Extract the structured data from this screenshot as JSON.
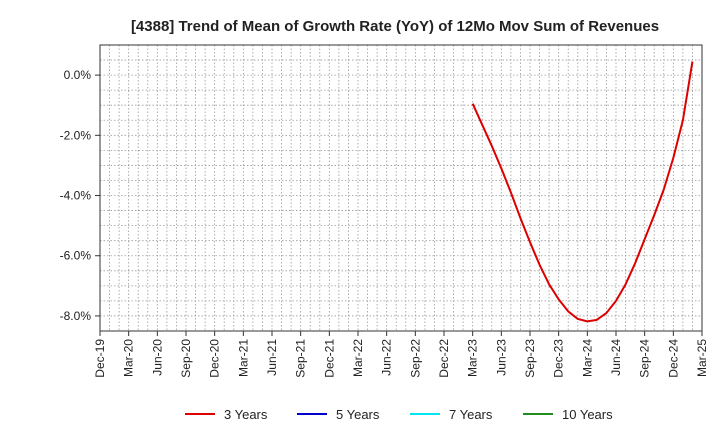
{
  "chart_data": {
    "type": "line",
    "title": "[4388]  Trend of Mean of Growth Rate (YoY) of 12Mo Mov Sum of Revenues",
    "xlabel": "",
    "ylabel": "",
    "x_tick_labels": [
      "Dec-19",
      "Mar-20",
      "Jun-20",
      "Sep-20",
      "Dec-20",
      "Mar-21",
      "Jun-21",
      "Sep-21",
      "Dec-21",
      "Mar-22",
      "Jun-22",
      "Sep-22",
      "Dec-22",
      "Mar-23",
      "Jun-23",
      "Sep-23",
      "Dec-23",
      "Mar-24",
      "Jun-24",
      "Sep-24",
      "Dec-24",
      "Mar-25"
    ],
    "y_ticks": [
      0.0,
      -2.0,
      -4.0,
      -6.0,
      -8.0
    ],
    "y_tick_labels": [
      "0.0%",
      "-2.0%",
      "-4.0%",
      "-6.0%",
      "-8.0%"
    ],
    "ylim": [
      -8.5,
      1.0
    ],
    "x_range_months": [
      0,
      63
    ],
    "series": [
      {
        "name": "3 Years",
        "color": "#dd0000",
        "points": [
          {
            "x": 39,
            "y": -0.95
          },
          {
            "x": 40,
            "y": -1.65
          },
          {
            "x": 41,
            "y": -2.35
          },
          {
            "x": 42,
            "y": -3.1
          },
          {
            "x": 43,
            "y": -3.9
          },
          {
            "x": 44,
            "y": -4.75
          },
          {
            "x": 45,
            "y": -5.55
          },
          {
            "x": 46,
            "y": -6.3
          },
          {
            "x": 47,
            "y": -6.95
          },
          {
            "x": 48,
            "y": -7.45
          },
          {
            "x": 49,
            "y": -7.85
          },
          {
            "x": 50,
            "y": -8.1
          },
          {
            "x": 51,
            "y": -8.18
          },
          {
            "x": 52,
            "y": -8.13
          },
          {
            "x": 53,
            "y": -7.9
          },
          {
            "x": 54,
            "y": -7.5
          },
          {
            "x": 55,
            "y": -6.95
          },
          {
            "x": 56,
            "y": -6.25
          },
          {
            "x": 57,
            "y": -5.45
          },
          {
            "x": 58,
            "y": -4.65
          },
          {
            "x": 59,
            "y": -3.8
          },
          {
            "x": 60,
            "y": -2.75
          },
          {
            "x": 61,
            "y": -1.5
          },
          {
            "x": 62,
            "y": 0.45
          }
        ]
      },
      {
        "name": "5 Years",
        "color": "#0000cc",
        "points": []
      },
      {
        "name": "7 Years",
        "color": "#00e5ee",
        "points": []
      },
      {
        "name": "10 Years",
        "color": "#228b22",
        "points": []
      }
    ],
    "legend_position": "bottom",
    "grid": true
  }
}
